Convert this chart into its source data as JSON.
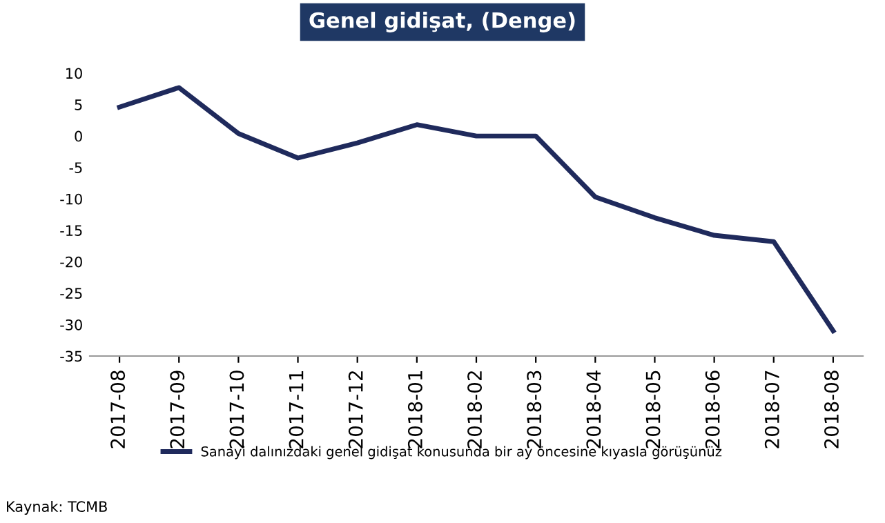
{
  "chart_data": {
    "type": "line",
    "title": "Genel gidişat, (Denge)",
    "categories": [
      "2017-08",
      "2017-09",
      "2017-10",
      "2017-11",
      "2017-12",
      "2018-01",
      "2018-02",
      "2018-03",
      "2018-04",
      "2018-05",
      "2018-06",
      "2018-07",
      "2018-08"
    ],
    "series": [
      {
        "name": "Sanayi dalınızdaki genel gidişat konusunda bir ay öncesine kıyasla görüşünüz",
        "color": "#1f2a5c",
        "values": [
          4.6,
          7.7,
          0.4,
          -3.5,
          -1.1,
          1.8,
          0,
          0,
          -9.7,
          -13,
          -15.8,
          -16.8,
          -31
        ]
      }
    ],
    "ylim": [
      -35,
      10
    ],
    "yticks": [
      -35,
      -30,
      -25,
      -20,
      -15,
      -10,
      -5,
      0,
      5,
      10
    ],
    "grid": false,
    "legend": "bottom",
    "marker": "none",
    "line_style": "solid",
    "annotations": [
      "Kaynak: TCMB"
    ]
  }
}
